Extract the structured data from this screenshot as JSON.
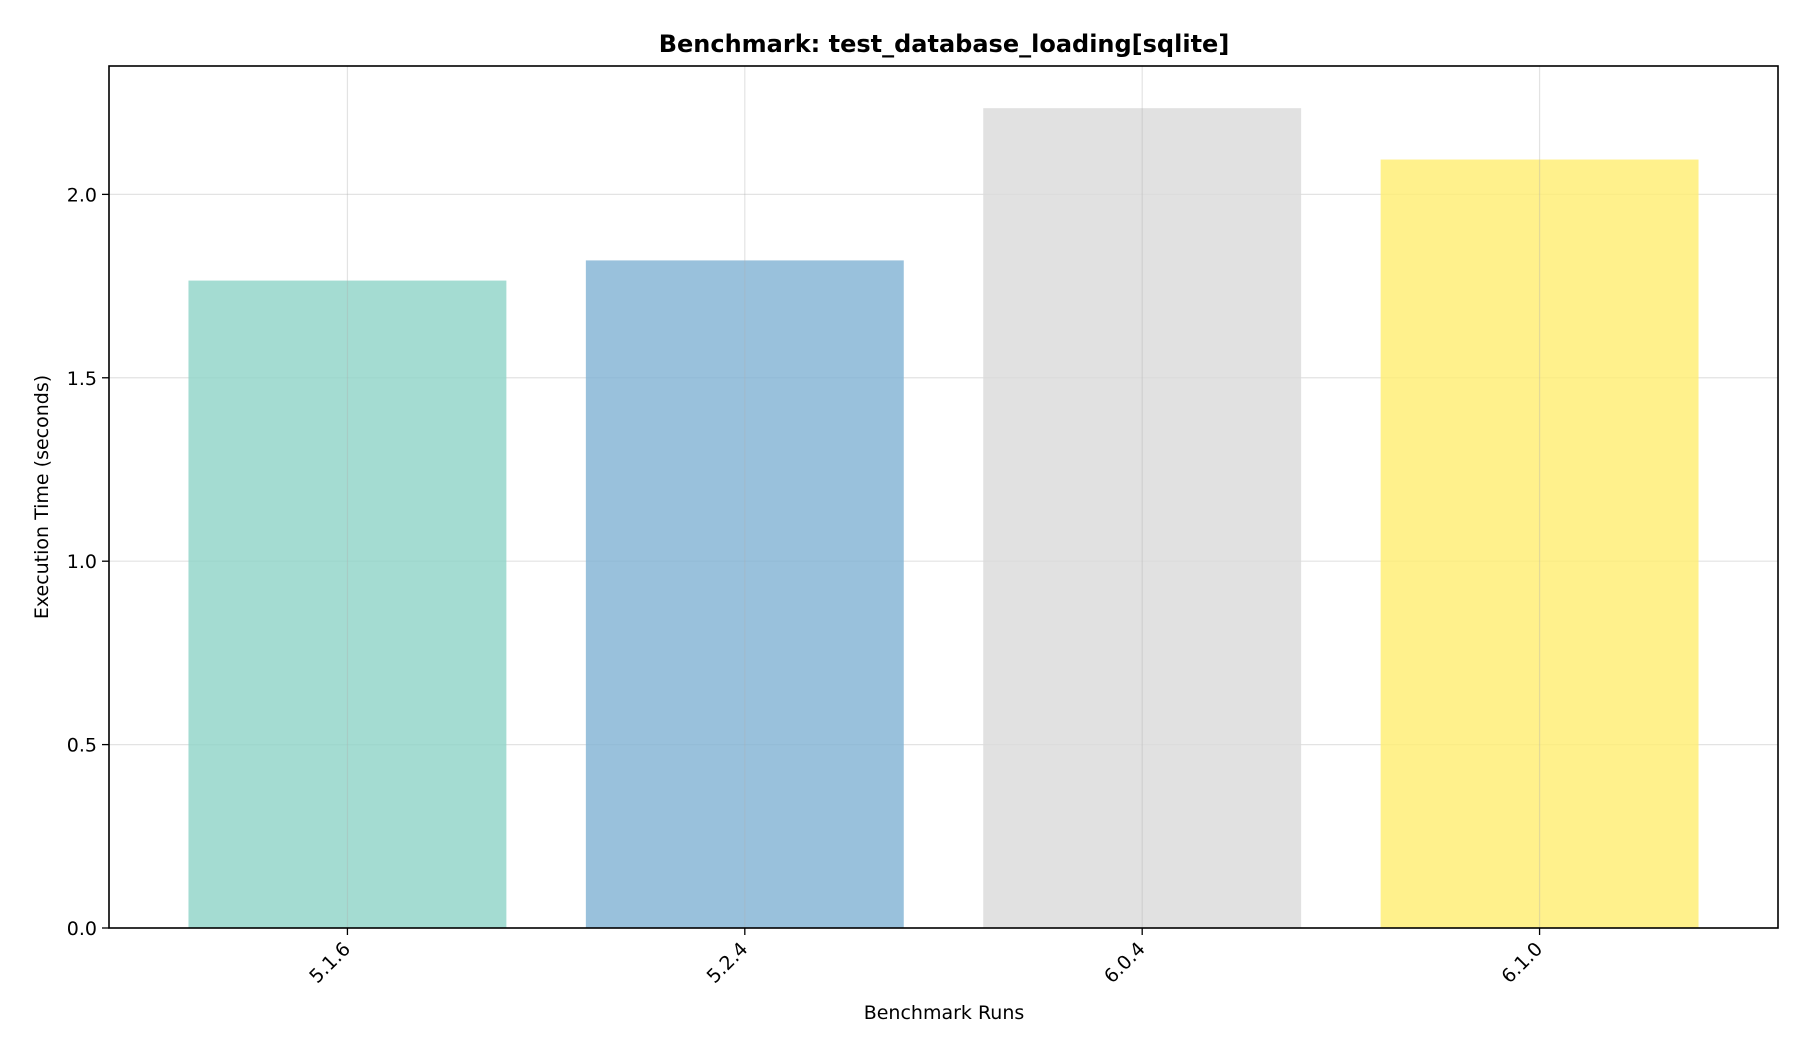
{
  "chart_data": {
    "type": "bar",
    "title": "Benchmark: test_database_loading[sqlite]",
    "xlabel": "Benchmark Runs",
    "ylabel": "Execution Time (seconds)",
    "categories": [
      "5.1.6",
      "5.2.4",
      "6.0.4",
      "6.1.0"
    ],
    "values": [
      1.765,
      1.82,
      2.235,
      2.095
    ],
    "colors": [
      "#8dd3c7",
      "#80b1d3",
      "#d9d9d9",
      "#ffed6f"
    ],
    "bar_opacity": 0.8,
    "ylim": [
      0,
      2.35
    ],
    "yticks": [
      0.0,
      0.5,
      1.0,
      1.5,
      2.0
    ],
    "ytick_labels": [
      "0.0",
      "0.5",
      "1.0",
      "1.5",
      "2.0"
    ],
    "xtick_rotation": 45,
    "grid": true,
    "legend": "none"
  }
}
